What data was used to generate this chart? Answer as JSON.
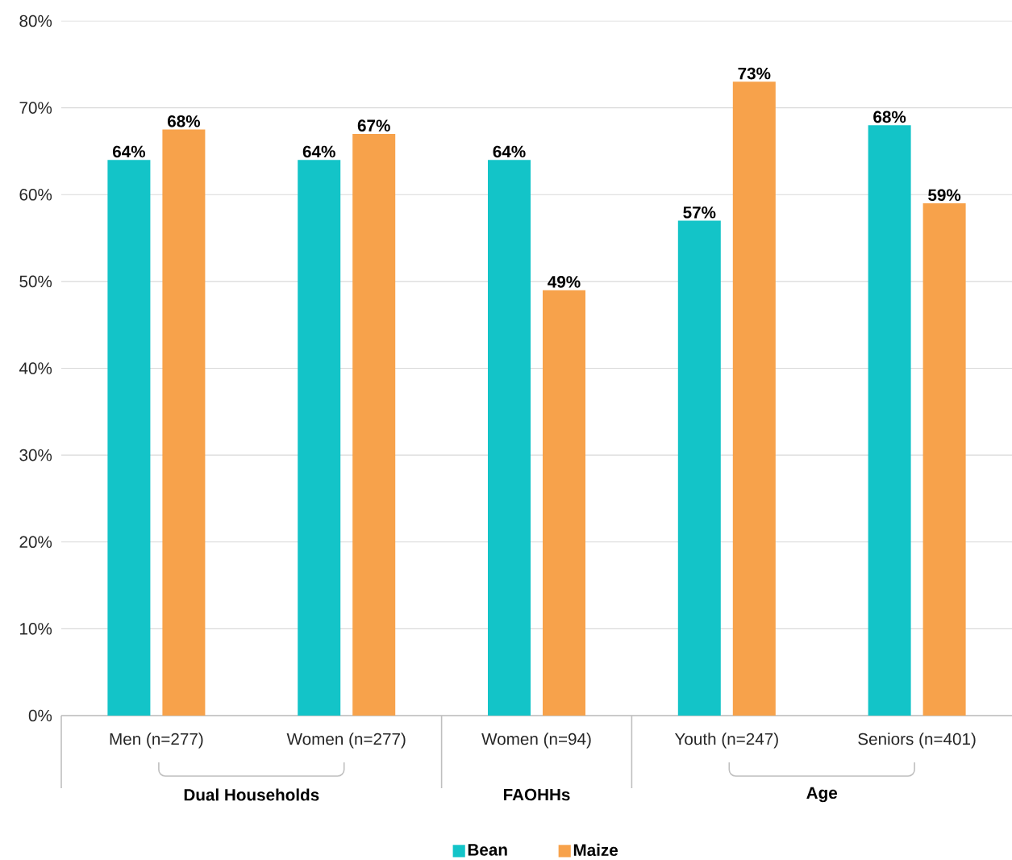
{
  "chart_data": {
    "type": "bar",
    "categories": [
      "Men (n=277)",
      "Women (n=277)",
      "Women (n=94)",
      "Youth (n=247)",
      "Seniors (n=401)"
    ],
    "series": [
      {
        "name": "Bean",
        "color": "#13c4c8",
        "values": [
          64,
          64,
          64,
          57,
          68
        ],
        "value_labels": [
          "64%",
          "64%",
          "64%",
          "57%",
          "68%"
        ]
      },
      {
        "name": "Maize",
        "color": "#f7a24b",
        "values": [
          67.5,
          67,
          49,
          73,
          59
        ],
        "value_labels": [
          "68%",
          "67%",
          "49%",
          "73%",
          "59%"
        ]
      }
    ],
    "ylim": [
      0,
      80
    ],
    "yticks": [
      {
        "value": 0,
        "label": "0%"
      },
      {
        "value": 10,
        "label": "10%"
      },
      {
        "value": 20,
        "label": "20%"
      },
      {
        "value": 30,
        "label": "30%"
      },
      {
        "value": 40,
        "label": "40%"
      },
      {
        "value": 50,
        "label": "50%"
      },
      {
        "value": 60,
        "label": "60%"
      },
      {
        "value": 70,
        "label": "70%"
      },
      {
        "value": 80,
        "label": "80%"
      }
    ],
    "grid": "y",
    "legend": "bottom",
    "annotations": [
      "Dual Households",
      "FAOHHs",
      "Age"
    ]
  }
}
